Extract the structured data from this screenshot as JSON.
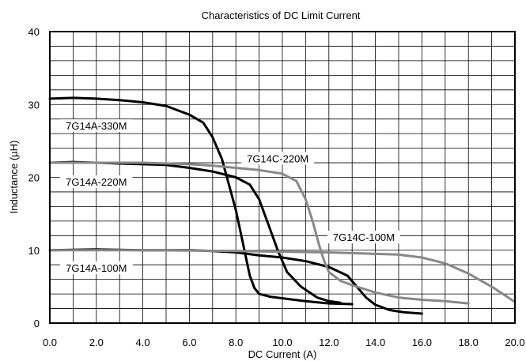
{
  "chart_data": {
    "type": "line",
    "title": "Characteristics of DC Limit Current",
    "xlabel": "DC Current (A)",
    "ylabel": "Inductance (µH)",
    "xlim": [
      0,
      20
    ],
    "ylim": [
      0,
      40
    ],
    "x_ticks": [
      "0.0",
      "2.0",
      "4.0",
      "6.0",
      "8.0",
      "10.0",
      "12.0",
      "14.0",
      "16.0",
      "18.0",
      "20.0"
    ],
    "y_ticks": [
      "0",
      "10",
      "20",
      "30",
      "40"
    ],
    "grid": true,
    "colors": {
      "black_series": "#000000",
      "gray_series": "#888888",
      "grid": "#000000"
    },
    "series": [
      {
        "name": "7G14A-330M",
        "color": "#000000",
        "points": [
          [
            0,
            30.8
          ],
          [
            1,
            30.9
          ],
          [
            2,
            30.8
          ],
          [
            3,
            30.6
          ],
          [
            4,
            30.3
          ],
          [
            5,
            29.8
          ],
          [
            6,
            28.6
          ],
          [
            6.6,
            27.5
          ],
          [
            7.0,
            25.5
          ],
          [
            7.4,
            22.5
          ],
          [
            7.7,
            19.0
          ],
          [
            8.0,
            15.5
          ],
          [
            8.2,
            12.5
          ],
          [
            8.4,
            9.5
          ],
          [
            8.6,
            6.5
          ],
          [
            8.8,
            4.8
          ],
          [
            9.0,
            4.0
          ],
          [
            9.5,
            3.6
          ],
          [
            10.0,
            3.4
          ],
          [
            11.0,
            3.0
          ],
          [
            12.0,
            2.7
          ],
          [
            13.0,
            2.6
          ]
        ]
      },
      {
        "name": "7G14A-220M",
        "color": "#000000",
        "points": [
          [
            0,
            22.0
          ],
          [
            1,
            22.1
          ],
          [
            2,
            22.0
          ],
          [
            3,
            21.9
          ],
          [
            4,
            21.8
          ],
          [
            5,
            21.7
          ],
          [
            6,
            21.3
          ],
          [
            7,
            20.8
          ],
          [
            8,
            20.0
          ],
          [
            8.6,
            19.0
          ],
          [
            9.0,
            17.0
          ],
          [
            9.4,
            13.5
          ],
          [
            9.8,
            10.0
          ],
          [
            10.2,
            7.0
          ],
          [
            10.8,
            5.0
          ],
          [
            11.5,
            3.5
          ],
          [
            12.0,
            3.0
          ],
          [
            12.5,
            2.8
          ]
        ]
      },
      {
        "name": "7G14A-100M",
        "color": "#000000",
        "points": [
          [
            0,
            10.0
          ],
          [
            2,
            10.1
          ],
          [
            4,
            10.0
          ],
          [
            6,
            10.0
          ],
          [
            7,
            9.9
          ],
          [
            8,
            9.7
          ],
          [
            9,
            9.3
          ],
          [
            10,
            9.0
          ],
          [
            11,
            8.5
          ],
          [
            12,
            7.7
          ],
          [
            12.8,
            6.5
          ],
          [
            13.2,
            5.0
          ],
          [
            13.6,
            3.5
          ],
          [
            14.0,
            2.5
          ],
          [
            14.6,
            1.8
          ],
          [
            15.2,
            1.5
          ],
          [
            16.0,
            1.3
          ]
        ]
      },
      {
        "name": "7G14C-220M",
        "color": "#888888",
        "points": [
          [
            0,
            22.0
          ],
          [
            2,
            22.0
          ],
          [
            4,
            22.0
          ],
          [
            6,
            21.8
          ],
          [
            7,
            21.6
          ],
          [
            8,
            21.3
          ],
          [
            9,
            21.0
          ],
          [
            10,
            20.5
          ],
          [
            10.6,
            19.5
          ],
          [
            11.0,
            17.0
          ],
          [
            11.3,
            14.0
          ],
          [
            11.6,
            10.5
          ],
          [
            11.8,
            8.5
          ],
          [
            12.0,
            7.0
          ],
          [
            12.5,
            5.8
          ],
          [
            13.0,
            5.2
          ],
          [
            14.0,
            4.2
          ],
          [
            15.0,
            3.5
          ],
          [
            16.0,
            3.2
          ],
          [
            17.0,
            3.0
          ],
          [
            18.0,
            2.7
          ]
        ]
      },
      {
        "name": "7G14C-100M",
        "color": "#888888",
        "points": [
          [
            0,
            10.0
          ],
          [
            4,
            10.0
          ],
          [
            8,
            9.9
          ],
          [
            10,
            9.8
          ],
          [
            12,
            9.7
          ],
          [
            14,
            9.5
          ],
          [
            15,
            9.4
          ],
          [
            16,
            9.0
          ],
          [
            16.5,
            8.6
          ],
          [
            17,
            8.2
          ],
          [
            18,
            6.8
          ],
          [
            19,
            5.0
          ],
          [
            20,
            2.9
          ]
        ]
      }
    ]
  }
}
